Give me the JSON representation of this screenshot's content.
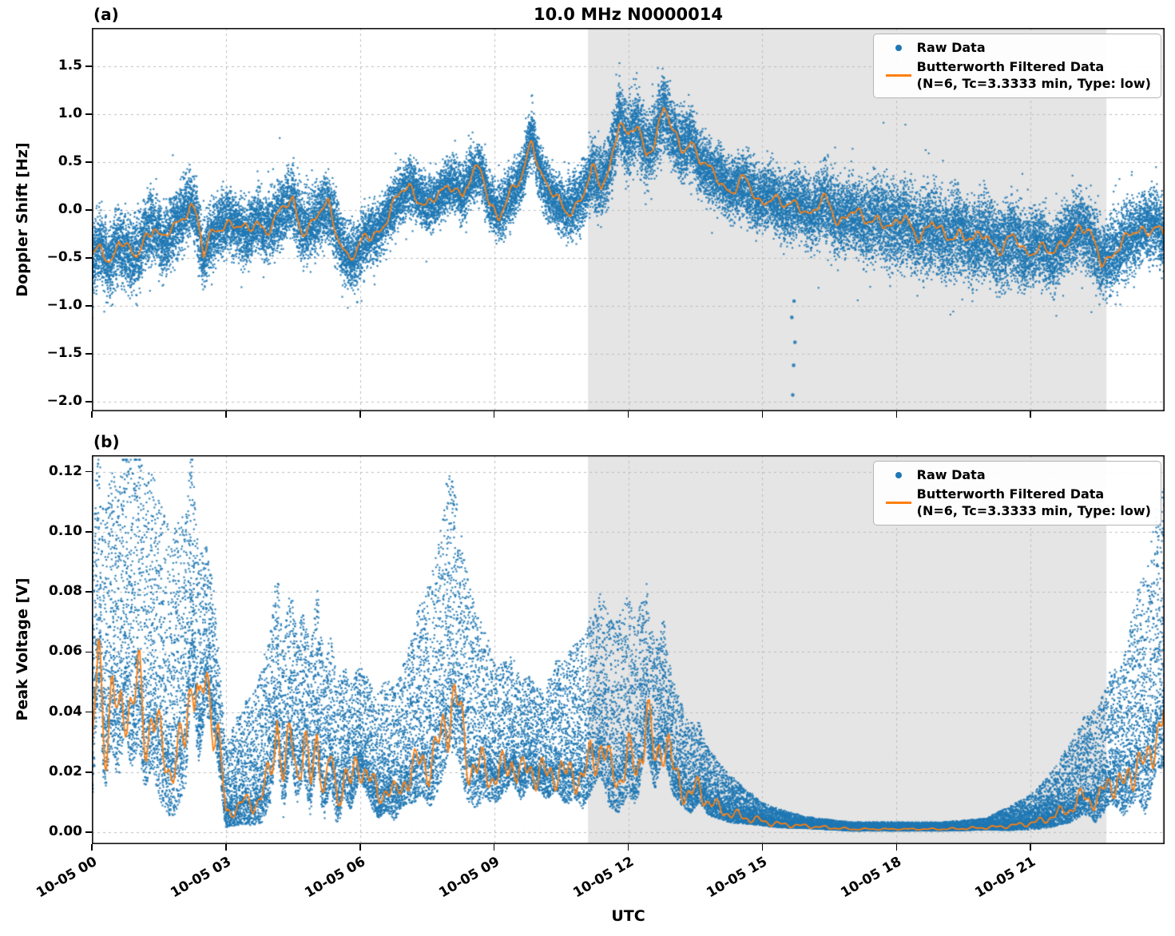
{
  "figure": {
    "xlabel": "UTC",
    "seed": 7,
    "colors": {
      "raw": "#1f77b4",
      "filtered": "#ff7f0e",
      "shade": "#e5e5e5",
      "grid": "#bdbdbd",
      "axis": "#000000"
    }
  },
  "legend": {
    "raw_label": "Raw Data",
    "filtered_label": "Butterworth Filtered Data",
    "filtered_sublabel": "(N=6, Tc=3.3333 min, Type: low)"
  },
  "chart_data": [
    {
      "panel_label": "(a)",
      "type": "scatter",
      "title": "10.0 MHz N0000014",
      "ylabel": "Doppler Shift [Hz]",
      "xlabel": "",
      "xlim": [
        0,
        24
      ],
      "ylim": [
        -2.1,
        1.9
      ],
      "yticks": [
        -2.0,
        -1.5,
        -1.0,
        -0.5,
        0.0,
        0.5,
        1.0,
        1.5
      ],
      "ytick_labels": [
        "−2.0",
        "−1.5",
        "−1.0",
        "−0.5",
        "0.0",
        "0.5",
        "1.0",
        "1.5"
      ],
      "xticks": [
        0,
        3,
        6,
        9,
        12,
        15,
        18,
        21
      ],
      "xtick_labels": [
        "10-05 00",
        "10-05 03",
        "10-05 06",
        "10-05 09",
        "10-05 12",
        "10-05 15",
        "10-05 18",
        "10-05 21"
      ],
      "grid": true,
      "legend_loc": "upper right",
      "shade": [
        11.1,
        22.7
      ],
      "series": [
        {
          "name": "Raw Data",
          "type": "scatter",
          "color": "#1f77b4"
        },
        {
          "name": "Butterworth Filtered Data (N=6, Tc=3.3333 min, Type: low)",
          "type": "line",
          "color": "#ff7f0e"
        }
      ],
      "skew": "none",
      "filtered_x": [
        0,
        0.2,
        0.4,
        0.6,
        0.8,
        1.0,
        1.2,
        1.4,
        1.6,
        1.8,
        2.0,
        2.2,
        2.35,
        2.5,
        2.7,
        2.9,
        3.1,
        3.3,
        3.5,
        3.7,
        3.9,
        4.1,
        4.3,
        4.5,
        4.7,
        4.9,
        5.1,
        5.3,
        5.5,
        5.7,
        5.9,
        6.1,
        6.3,
        6.5,
        6.7,
        6.9,
        7.1,
        7.3,
        7.5,
        7.7,
        7.9,
        8.1,
        8.3,
        8.5,
        8.7,
        8.9,
        9.1,
        9.3,
        9.6,
        9.85,
        10.0,
        10.2,
        10.4,
        10.6,
        10.8,
        11.0,
        11.2,
        11.4,
        11.6,
        11.8,
        12.0,
        12.2,
        12.4,
        12.6,
        12.8,
        13.0,
        13.2,
        13.4,
        13.6,
        13.8,
        14.0,
        14.3,
        14.6,
        14.9,
        15.2,
        15.5,
        15.8,
        16.1,
        16.4,
        16.7,
        17.0,
        17.3,
        17.6,
        17.9,
        18.2,
        18.5,
        18.8,
        19.1,
        19.4,
        19.7,
        20.0,
        20.3,
        20.6,
        20.9,
        21.2,
        21.5,
        21.8,
        22.1,
        22.35,
        22.6,
        22.9,
        23.2,
        23.5,
        23.8,
        24.0
      ],
      "filtered_y": [
        -0.55,
        -0.35,
        -0.55,
        -0.3,
        -0.45,
        -0.5,
        -0.25,
        -0.15,
        -0.35,
        -0.2,
        -0.1,
        0.1,
        -0.05,
        -0.5,
        -0.25,
        -0.15,
        -0.1,
        -0.2,
        -0.25,
        -0.1,
        -0.2,
        -0.1,
        0.0,
        0.1,
        -0.2,
        -0.15,
        -0.05,
        0.05,
        -0.25,
        -0.45,
        -0.5,
        -0.3,
        -0.25,
        -0.15,
        0.0,
        0.15,
        0.25,
        0.15,
        0.05,
        0.1,
        0.2,
        0.3,
        0.15,
        0.35,
        0.4,
        0.1,
        -0.05,
        0.1,
        0.3,
        0.8,
        0.45,
        0.2,
        0.1,
        0.0,
        0.05,
        0.15,
        0.4,
        0.25,
        0.5,
        0.95,
        0.7,
        0.9,
        0.6,
        0.75,
        1.05,
        0.8,
        0.65,
        0.75,
        0.5,
        0.4,
        0.35,
        0.2,
        0.3,
        0.1,
        0.15,
        0.0,
        0.1,
        -0.05,
        0.1,
        -0.1,
        0.0,
        -0.15,
        -0.05,
        -0.2,
        -0.1,
        -0.25,
        -0.15,
        -0.3,
        -0.2,
        -0.35,
        -0.25,
        -0.4,
        -0.3,
        -0.45,
        -0.35,
        -0.5,
        -0.3,
        -0.15,
        -0.3,
        -0.55,
        -0.4,
        -0.3,
        -0.2,
        -0.15,
        -0.3
      ],
      "spread_x": [
        0,
        1,
        2,
        3,
        4,
        5,
        6,
        7,
        8,
        9,
        10,
        11,
        12,
        13,
        14,
        15,
        16,
        17,
        18,
        19,
        20,
        21,
        22,
        23,
        24
      ],
      "spread_y": [
        0.45,
        0.5,
        0.45,
        0.4,
        0.42,
        0.45,
        0.4,
        0.35,
        0.35,
        0.35,
        0.35,
        0.42,
        0.5,
        0.45,
        0.4,
        0.4,
        0.45,
        0.5,
        0.55,
        0.55,
        0.55,
        0.5,
        0.45,
        0.5,
        0.45
      ],
      "outliers": [
        [
          15.68,
          -1.93
        ],
        [
          15.7,
          -1.62
        ],
        [
          15.73,
          -1.38
        ],
        [
          15.66,
          -1.12
        ],
        [
          15.71,
          -0.95
        ]
      ]
    },
    {
      "panel_label": "(b)",
      "type": "scatter",
      "title": "",
      "ylabel": "Peak Voltage [V]",
      "xlabel": "UTC",
      "xlim": [
        0,
        24
      ],
      "ylim": [
        -0.004,
        0.1255
      ],
      "yticks": [
        0.0,
        0.02,
        0.04,
        0.06,
        0.08,
        0.1,
        0.12
      ],
      "ytick_labels": [
        "0.00",
        "0.02",
        "0.04",
        "0.06",
        "0.08",
        "0.10",
        "0.12"
      ],
      "xticks": [
        0,
        3,
        6,
        9,
        12,
        15,
        18,
        21
      ],
      "xtick_labels": [
        "10-05 00",
        "10-05 03",
        "10-05 06",
        "10-05 09",
        "10-05 12",
        "10-05 15",
        "10-05 18",
        "10-05 21"
      ],
      "grid": true,
      "legend_loc": "upper right",
      "shade": [
        11.1,
        22.7
      ],
      "series": [
        {
          "name": "Raw Data",
          "type": "scatter",
          "color": "#1f77b4"
        },
        {
          "name": "Butterworth Filtered Data (N=6, Tc=3.3333 min, Type: low)",
          "type": "line",
          "color": "#ff7f0e"
        }
      ],
      "skew": "up",
      "filtered_x": [
        0,
        0.15,
        0.3,
        0.45,
        0.6,
        0.75,
        0.9,
        1.05,
        1.2,
        1.35,
        1.5,
        1.65,
        1.8,
        1.95,
        2.1,
        2.25,
        2.4,
        2.55,
        2.7,
        2.85,
        3.0,
        3.2,
        3.4,
        3.6,
        3.8,
        4.0,
        4.15,
        4.3,
        4.45,
        4.6,
        4.75,
        4.9,
        5.05,
        5.2,
        5.35,
        5.5,
        5.65,
        5.8,
        6.0,
        6.2,
        6.4,
        6.6,
        6.8,
        7.0,
        7.2,
        7.4,
        7.6,
        7.8,
        8.0,
        8.2,
        8.4,
        8.6,
        8.8,
        9.0,
        9.2,
        9.4,
        9.6,
        9.8,
        10.0,
        10.2,
        10.4,
        10.6,
        10.8,
        11.0,
        11.2,
        11.4,
        11.6,
        11.8,
        12.0,
        12.2,
        12.4,
        12.6,
        12.8,
        13.0,
        13.2,
        13.4,
        13.6,
        13.8,
        14.0,
        14.3,
        14.6,
        14.9,
        15.2,
        15.5,
        16.0,
        16.5,
        17.0,
        17.5,
        18.0,
        18.5,
        19.0,
        19.5,
        20.0,
        20.5,
        21.0,
        21.3,
        21.6,
        21.9,
        22.2,
        22.5,
        22.8,
        23.1,
        23.4,
        23.6,
        23.8,
        24.0
      ],
      "filtered_y": [
        0.02,
        0.062,
        0.03,
        0.045,
        0.035,
        0.05,
        0.04,
        0.048,
        0.033,
        0.04,
        0.03,
        0.025,
        0.02,
        0.026,
        0.032,
        0.064,
        0.035,
        0.05,
        0.045,
        0.028,
        0.006,
        0.008,
        0.01,
        0.009,
        0.012,
        0.02,
        0.04,
        0.015,
        0.035,
        0.02,
        0.03,
        0.015,
        0.035,
        0.012,
        0.025,
        0.01,
        0.02,
        0.015,
        0.025,
        0.018,
        0.012,
        0.015,
        0.012,
        0.018,
        0.02,
        0.025,
        0.022,
        0.03,
        0.045,
        0.04,
        0.025,
        0.02,
        0.022,
        0.018,
        0.02,
        0.025,
        0.018,
        0.022,
        0.02,
        0.018,
        0.022,
        0.018,
        0.02,
        0.018,
        0.025,
        0.03,
        0.02,
        0.018,
        0.025,
        0.02,
        0.04,
        0.022,
        0.035,
        0.02,
        0.015,
        0.012,
        0.015,
        0.01,
        0.008,
        0.006,
        0.005,
        0.004,
        0.003,
        0.0025,
        0.002,
        0.0015,
        0.001,
        0.001,
        0.001,
        0.001,
        0.001,
        0.0012,
        0.0015,
        0.002,
        0.003,
        0.004,
        0.006,
        0.008,
        0.012,
        0.01,
        0.018,
        0.015,
        0.025,
        0.02,
        0.035,
        0.04
      ],
      "spread_x": [
        0,
        1,
        2,
        3,
        4,
        5,
        6,
        7,
        8,
        9,
        10,
        11,
        12,
        13,
        14,
        15,
        16,
        17,
        18,
        19,
        20,
        20.5,
        21,
        21.5,
        22,
        22.5,
        23,
        23.5,
        24
      ],
      "spread_y": [
        0.045,
        0.055,
        0.05,
        0.015,
        0.03,
        0.03,
        0.02,
        0.025,
        0.05,
        0.025,
        0.018,
        0.03,
        0.035,
        0.02,
        0.01,
        0.004,
        0.002,
        0.0015,
        0.0015,
        0.0015,
        0.002,
        0.004,
        0.006,
        0.01,
        0.015,
        0.02,
        0.025,
        0.04,
        0.05
      ],
      "outliers": []
    }
  ]
}
